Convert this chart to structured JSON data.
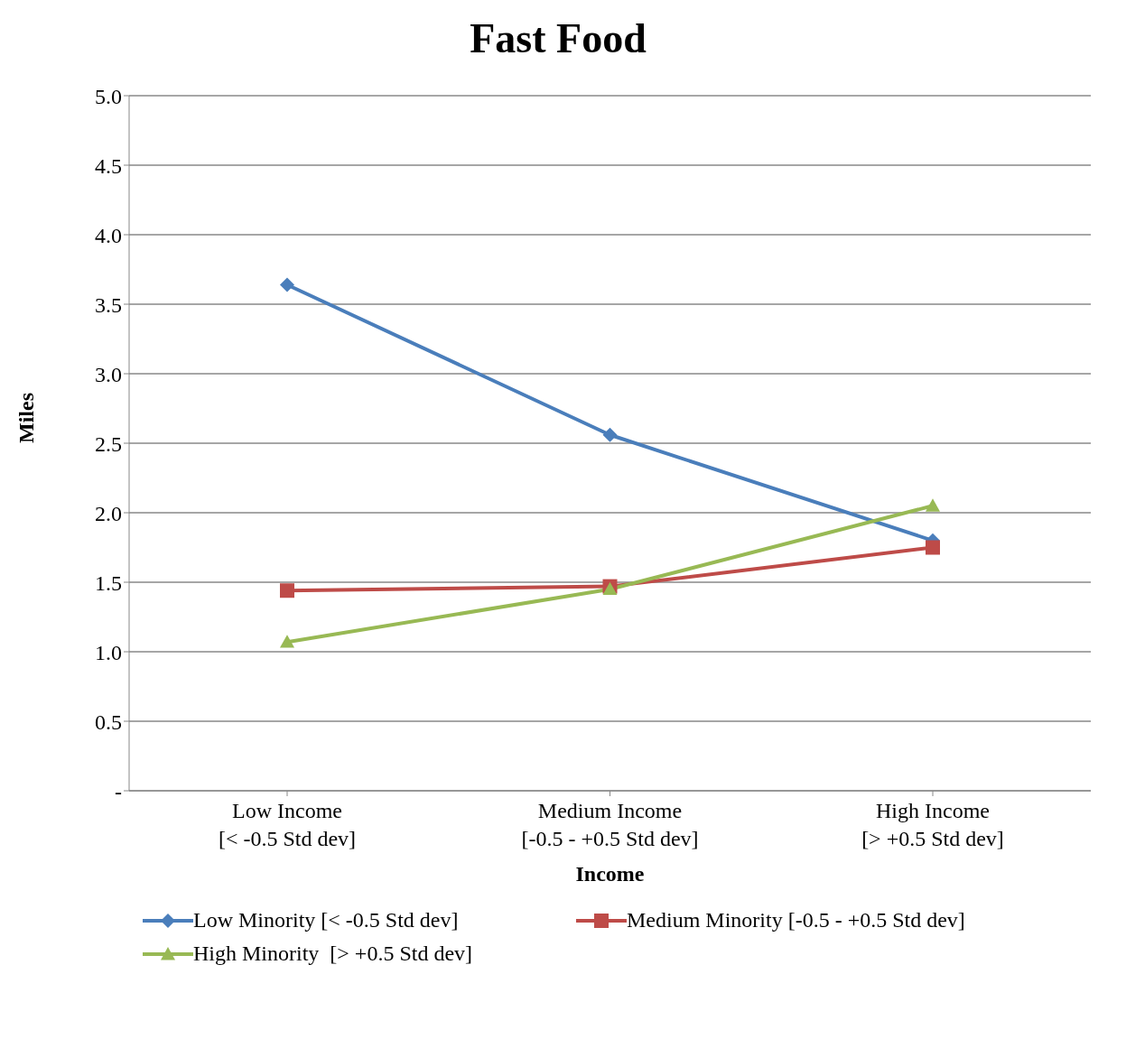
{
  "chart_data": {
    "type": "line",
    "title": "Fast Food",
    "xlabel": "Income",
    "ylabel": "Miles",
    "categories": [
      "Low Income\n[< -0.5 Std dev]",
      "Medium Income\n[-0.5 - +0.5 Std dev]",
      "High Income\n[> +0.5 Std dev]"
    ],
    "series": [
      {
        "name": "Low Minority [< -0.5 Std dev]",
        "color": "#4a7ebb",
        "marker": "diamond",
        "values": [
          3.64,
          2.56,
          1.8
        ]
      },
      {
        "name": "Medium Minority [-0.5 - +0.5 Std dev]",
        "color": "#be4b48",
        "marker": "square",
        "values": [
          1.44,
          1.47,
          1.75
        ]
      },
      {
        "name": "High Minority  [> +0.5 Std dev]",
        "color": "#98b954",
        "marker": "triangle",
        "values": [
          1.07,
          1.45,
          2.05
        ]
      }
    ],
    "ylim": [
      0,
      5
    ],
    "yticks": [
      {
        "value": 0,
        "label": "-"
      },
      0.5,
      {
        "value": 1,
        "label": "1.0"
      },
      1.5,
      {
        "value": 2,
        "label": "2.0"
      },
      2.5,
      {
        "value": 3,
        "label": "3.0"
      },
      3.5,
      {
        "value": 4,
        "label": "4.0"
      },
      4.5,
      {
        "value": 5,
        "label": "5.0"
      }
    ],
    "grid": "y",
    "legend": "bottom",
    "line_style": "solid"
  }
}
